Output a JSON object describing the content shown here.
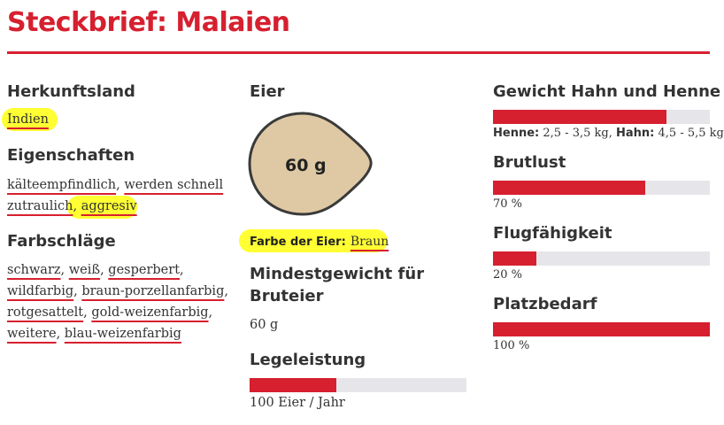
{
  "title": "Steckbrief: Malaien",
  "colors": {
    "accent": "#d6202f",
    "highlight": "#ffff33",
    "egg": "#dfc9a4",
    "track": "#e6e6ea"
  },
  "left": {
    "origin_heading": "Herkunftsland",
    "origin_value": "Indien",
    "traits_heading": "Eigenschaften",
    "traits": [
      [
        "kälteempfindlich",
        ", ",
        "werden schnell"
      ],
      [
        "zutraulich",
        ", ",
        "aggresiv"
      ]
    ],
    "colors_heading": "Farbschläge",
    "color_lines": [
      [
        "schwarz",
        ", ",
        "weiß",
        ", ",
        "gesperbert",
        ","
      ],
      [
        "wildfarbig",
        ", ",
        "braun-porzellanfarbig",
        ","
      ],
      [
        "rotgesattelt",
        ", ",
        "gold-weizenfarbig",
        ","
      ],
      [
        "weitere",
        ", ",
        "blau-weizenfarbig"
      ]
    ]
  },
  "middle": {
    "eggs_heading": "Eier",
    "egg_weight": "60 g",
    "egg_color_label": "Farbe der Eier:",
    "egg_color_value": "Braun",
    "min_weight_heading_line1": "Mindestgewicht für",
    "min_weight_heading_line2": "Bruteier",
    "min_weight_value": "60 g",
    "laying_heading": "Legeleistung",
    "laying_level": 0.4,
    "laying_value": "100 Eier / Jahr"
  },
  "right": {
    "weight_heading": "Gewicht Hahn und Henne",
    "weight_level": 0.8,
    "hen_label": "Henne:",
    "hen_value": "2,5 - 3,5 kg,",
    "rooster_label": "Hahn:",
    "rooster_value": "4,5 - 5,5 kg",
    "brood_heading": "Brutlust",
    "brood_level": 0.7,
    "brood_value": "70 %",
    "flight_heading": "Flugfähigkeit",
    "flight_level": 0.2,
    "flight_value": "20 %",
    "space_heading": "Platzbedarf",
    "space_level": 1.0,
    "space_value": "100 %"
  }
}
